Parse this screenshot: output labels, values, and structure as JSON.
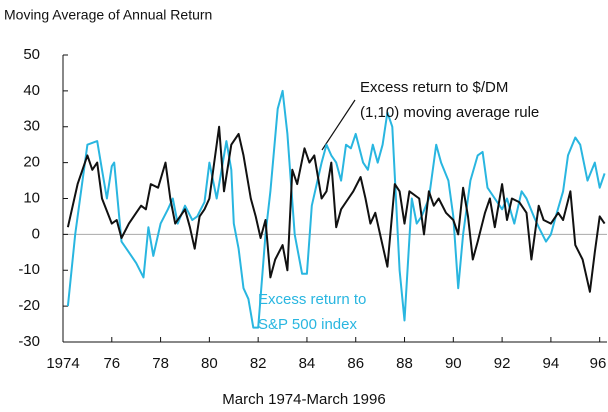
{
  "chart_data": {
    "type": "line",
    "title": "Moving Average of Annual Return",
    "x_label": "March 1974-March 1996",
    "xlim": [
      1974,
      1996.3
    ],
    "xticks": [
      1974,
      {
        "value": 1976,
        "label": "76"
      },
      {
        "value": 1978,
        "label": "78"
      },
      {
        "value": 1980,
        "label": "80"
      },
      {
        "value": 1982,
        "label": "82"
      },
      {
        "value": 1984,
        "label": "84"
      },
      {
        "value": 1986,
        "label": "86"
      },
      {
        "value": 1988,
        "label": "88"
      },
      {
        "value": 1990,
        "label": "90"
      },
      {
        "value": 1992,
        "label": "92"
      },
      {
        "value": 1994,
        "label": "94"
      },
      {
        "value": 1996,
        "label": "96"
      }
    ],
    "ylim": [
      -30,
      50
    ],
    "yticks": [
      -30,
      -20,
      -10,
      0,
      10,
      20,
      30,
      40,
      50
    ],
    "annotations": [
      [
        "Excess return to $/DM",
        "(1,10) moving average rule"
      ],
      [
        "Excess return to",
        "S&P 500 index"
      ]
    ],
    "series": [
      {
        "color": "#111111",
        "x": [
          1974.2,
          1974.6,
          1975.0,
          1975.2,
          1975.4,
          1975.6,
          1976.0,
          1976.2,
          1976.4,
          1976.7,
          1977.0,
          1977.2,
          1977.4,
          1977.6,
          1977.9,
          1978.2,
          1978.4,
          1978.6,
          1978.8,
          1979.0,
          1979.2,
          1979.4,
          1979.6,
          1979.8,
          1980.0,
          1980.2,
          1980.4,
          1980.6,
          1980.9,
          1981.2,
          1981.4,
          1981.7,
          1981.9,
          1982.1,
          1982.3,
          1982.5,
          1982.7,
          1983.0,
          1983.2,
          1983.4,
          1983.6,
          1983.9,
          1984.1,
          1984.3,
          1984.6,
          1984.8,
          1985.0,
          1985.2,
          1985.4,
          1985.7,
          1985.9,
          1986.2,
          1986.4,
          1986.6,
          1986.8,
          1987.0,
          1987.3,
          1987.6,
          1987.8,
          1988.0,
          1988.2,
          1988.6,
          1988.8,
          1989.0,
          1989.2,
          1989.4,
          1989.7,
          1990.0,
          1990.2,
          1990.4,
          1990.6,
          1990.8,
          1991.0,
          1991.3,
          1991.5,
          1991.7,
          1992.0,
          1992.2,
          1992.4,
          1992.7,
          1993.0,
          1993.2,
          1993.5,
          1993.7,
          1994.0,
          1994.3,
          1994.5,
          1994.8,
          1995.0,
          1995.3,
          1995.6,
          1995.8,
          1996.0,
          1996.2
        ],
        "values": [
          2,
          14,
          22,
          18,
          20,
          10,
          3,
          4,
          -1,
          3,
          6,
          8,
          7,
          14,
          13,
          20,
          10,
          3,
          5,
          7,
          2,
          -4,
          5,
          7,
          10,
          20,
          30,
          12,
          25,
          28,
          22,
          10,
          5,
          -1,
          4,
          -12,
          -7,
          -3,
          -10,
          18,
          14,
          24,
          20,
          22,
          10,
          12,
          20,
          2,
          7,
          10,
          12,
          16,
          10,
          3,
          6,
          0,
          -9,
          14,
          12,
          3,
          12,
          10,
          0,
          12,
          8,
          10,
          6,
          4,
          0,
          13,
          5,
          -7,
          -2,
          6,
          10,
          2,
          14,
          4,
          10,
          9,
          6,
          -7,
          8,
          4,
          3,
          6,
          4,
          12,
          -3,
          -7,
          -16,
          -5,
          5,
          3
        ]
      },
      {
        "color": "#29b6e0",
        "x": [
          1974.2,
          1974.5,
          1974.8,
          1975.0,
          1975.4,
          1975.6,
          1975.8,
          1976.0,
          1976.1,
          1976.4,
          1976.7,
          1977.0,
          1977.3,
          1977.5,
          1977.7,
          1978.0,
          1978.3,
          1978.5,
          1978.7,
          1979.0,
          1979.3,
          1979.5,
          1979.8,
          1980.0,
          1980.3,
          1980.5,
          1980.7,
          1980.9,
          1981.0,
          1981.2,
          1981.4,
          1981.6,
          1981.8,
          1982.0,
          1982.3,
          1982.5,
          1982.8,
          1983.0,
          1983.2,
          1983.5,
          1983.8,
          1984.0,
          1984.2,
          1984.4,
          1984.6,
          1984.8,
          1985.0,
          1985.2,
          1985.4,
          1985.6,
          1985.8,
          1986.0,
          1986.3,
          1986.5,
          1986.7,
          1986.9,
          1987.1,
          1987.3,
          1987.5,
          1987.8,
          1988.0,
          1988.3,
          1988.5,
          1988.7,
          1989.0,
          1989.3,
          1989.5,
          1989.8,
          1990.0,
          1990.2,
          1990.4,
          1990.7,
          1991.0,
          1991.2,
          1991.4,
          1991.7,
          1992.0,
          1992.2,
          1992.5,
          1992.8,
          1993.0,
          1993.3,
          1993.5,
          1993.8,
          1994.0,
          1994.2,
          1994.5,
          1994.7,
          1995.0,
          1995.2,
          1995.5,
          1995.8,
          1996.0,
          1996.2
        ],
        "values": [
          -20,
          0,
          15,
          25,
          26,
          18,
          10,
          19,
          20,
          -2,
          -5,
          -8,
          -12,
          2,
          -6,
          3,
          7,
          10,
          3,
          8,
          4,
          5,
          9,
          20,
          10,
          18,
          26,
          18,
          3,
          -4,
          -15,
          -18,
          -26,
          -26,
          0,
          12,
          35,
          40,
          28,
          0,
          -11,
          -11,
          8,
          14,
          20,
          25,
          22,
          20,
          15,
          25,
          24,
          28,
          20,
          18,
          25,
          20,
          25,
          34,
          30,
          -10,
          -24,
          10,
          3,
          5,
          10,
          25,
          20,
          15,
          5,
          -15,
          0,
          15,
          22,
          23,
          13,
          10,
          7,
          10,
          3,
          12,
          10,
          5,
          2,
          -2,
          0,
          5,
          12,
          22,
          27,
          25,
          15,
          20,
          13,
          17
        ]
      }
    ]
  }
}
